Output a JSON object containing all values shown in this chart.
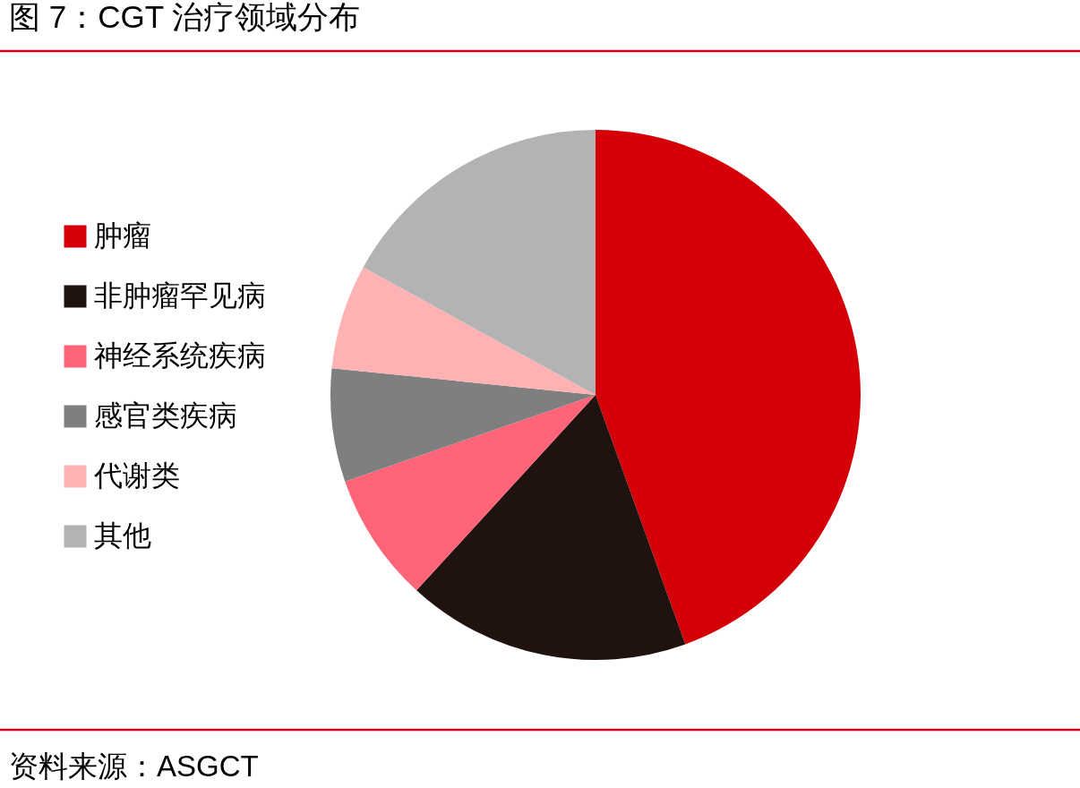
{
  "chart_data": {
    "type": "pie",
    "title": "图 7：CGT 治疗领域分布",
    "categories": [
      "肿瘤",
      "非肿瘤罕见病",
      "神经系统疾病",
      "感官类疾病",
      "代谢类",
      "其他"
    ],
    "values": [
      44.5,
      17.3,
      7.9,
      6.9,
      6.4,
      17.0
    ],
    "colors": [
      "#d50007",
      "#20120e",
      "#ff6478",
      "#7f7f7f",
      "#ffb2b4",
      "#b3b3b3"
    ],
    "legend": "left",
    "annotations": [
      "资料来源：ASGCT"
    ]
  }
}
